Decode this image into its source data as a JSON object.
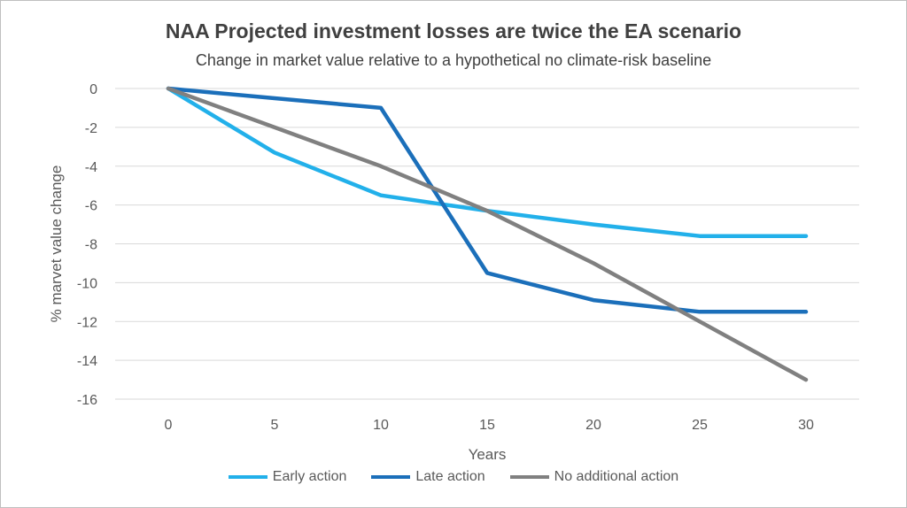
{
  "colors": {
    "early": "#22b0ea",
    "late": "#1b6fba",
    "none": "#808080",
    "grid": "#d9d9d9"
  },
  "chart_data": {
    "type": "line",
    "title": "NAA Projected investment losses are twice the EA scenario",
    "subtitle": "Change in market value relative to a hypothetical no climate-risk baseline",
    "xlabel": "Years",
    "ylabel": "% marvet value change",
    "x": [
      0,
      5,
      10,
      15,
      20,
      25,
      30
    ],
    "x_tick_labels": [
      "0",
      "5",
      "10",
      "15",
      "20",
      "25",
      "30"
    ],
    "y_tick_labels": [
      "0",
      "-2",
      "-4",
      "-6",
      "-8",
      "-10",
      "-12",
      "-14",
      "-16"
    ],
    "ylim": [
      -16,
      0
    ],
    "grid": true,
    "legend_position": "bottom",
    "series": [
      {
        "name": "Early action",
        "color_key": "early",
        "values": [
          0,
          -3.3,
          -5.5,
          -6.3,
          -7.0,
          -7.6,
          -7.6
        ]
      },
      {
        "name": "Late action",
        "color_key": "late",
        "values": [
          0,
          -0.5,
          -1.0,
          -9.5,
          -10.9,
          -11.5,
          -11.5
        ]
      },
      {
        "name": "No additional action",
        "color_key": "none",
        "values": [
          0,
          -2.0,
          -4.0,
          -6.3,
          -9.0,
          -12.0,
          -15.0
        ]
      }
    ]
  }
}
